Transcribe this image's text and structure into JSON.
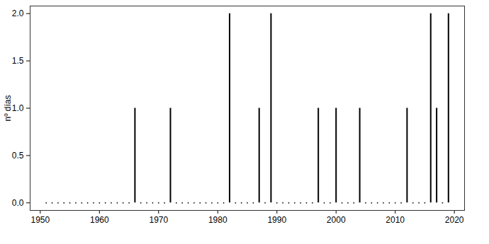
{
  "chart_data": {
    "type": "bar",
    "y_label": "nº días",
    "x": [
      1951,
      1952,
      1953,
      1954,
      1955,
      1956,
      1957,
      1958,
      1959,
      1960,
      1961,
      1962,
      1963,
      1964,
      1965,
      1966,
      1967,
      1968,
      1969,
      1970,
      1971,
      1972,
      1973,
      1974,
      1975,
      1976,
      1977,
      1978,
      1979,
      1980,
      1981,
      1982,
      1983,
      1984,
      1985,
      1986,
      1987,
      1988,
      1989,
      1990,
      1991,
      1992,
      1993,
      1994,
      1995,
      1996,
      1997,
      1998,
      1999,
      2000,
      2001,
      2002,
      2003,
      2004,
      2005,
      2006,
      2007,
      2008,
      2009,
      2010,
      2011,
      2012,
      2013,
      2014,
      2015,
      2016,
      2017,
      2018,
      2019
    ],
    "values": [
      0,
      0,
      0,
      0,
      0,
      0,
      0,
      0,
      0,
      0,
      0,
      0,
      0,
      0,
      0,
      1,
      0,
      0,
      0,
      0,
      0,
      1,
      0,
      0,
      0,
      0,
      0,
      0,
      0,
      0,
      0,
      2,
      0,
      0,
      0,
      0,
      1,
      0,
      2,
      0,
      0,
      0,
      0,
      0,
      0,
      0,
      1,
      0,
      0,
      1,
      0,
      0,
      0,
      1,
      0,
      0,
      0,
      0,
      0,
      0,
      0,
      1,
      0,
      0,
      0,
      2,
      1,
      0,
      2
    ],
    "color": "#000000",
    "xlim": [
      1948.28,
      2021.72
    ],
    "xticks": [
      1950,
      1960,
      1970,
      1980,
      1990,
      2000,
      2010,
      2020
    ],
    "ylim": [
      -0.08,
      2.08
    ],
    "yticks": [
      {
        "value": 0,
        "label": "0.0"
      },
      {
        "value": 0.5,
        "label": "0.5"
      },
      {
        "value": 1,
        "label": "1.0"
      },
      {
        "value": 1.5,
        "label": "1.5"
      },
      {
        "value": 2,
        "label": "2.0"
      }
    ],
    "grid": false
  }
}
